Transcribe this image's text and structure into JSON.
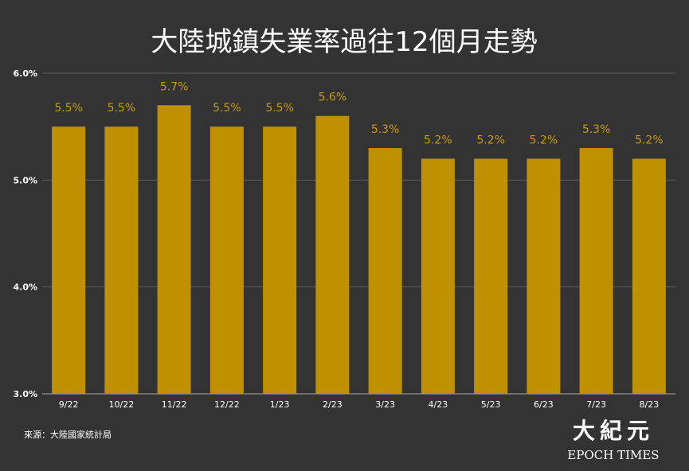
{
  "chart_data": {
    "type": "bar",
    "title": "大陸城鎮失業率過往12個月走勢",
    "categories": [
      "9/22",
      "10/22",
      "11/22",
      "12/22",
      "1/23",
      "2/23",
      "3/23",
      "4/23",
      "5/23",
      "6/23",
      "7/23",
      "8/23"
    ],
    "values": [
      5.5,
      5.5,
      5.7,
      5.5,
      5.5,
      5.6,
      5.3,
      5.2,
      5.2,
      5.2,
      5.3,
      5.2
    ],
    "data_labels": [
      "5.5%",
      "5.5%",
      "5.7%",
      "5.5%",
      "5.5%",
      "5.6%",
      "5.3%",
      "5.2%",
      "5.2%",
      "5.2%",
      "5.3%",
      "5.2%"
    ],
    "ylim": [
      3.0,
      6.0
    ],
    "yticks": [
      3.0,
      4.0,
      5.0,
      6.0
    ],
    "ytick_labels": [
      "3.0%",
      "4.0%",
      "5.0%",
      "6.0%"
    ],
    "xlabel": "",
    "ylabel": "",
    "grid": true,
    "bar_color": "#bf9000",
    "label_color": "#c79a10",
    "background": "#333333"
  },
  "source_text": "來源：大陸國家統計局",
  "logo": {
    "chinese": "大紀元",
    "english": "EPOCH TIMES"
  }
}
